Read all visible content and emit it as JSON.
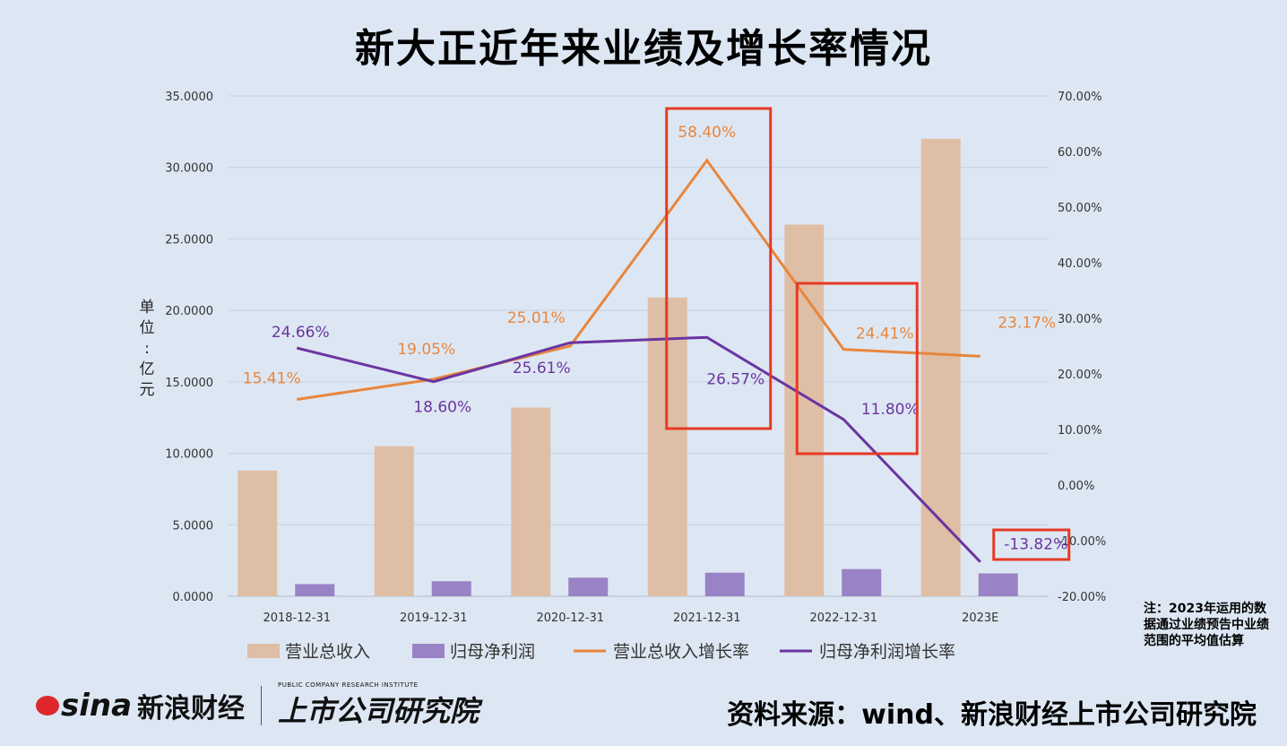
{
  "title": "新大正近年来业绩及增长率情况",
  "unit_label": [
    "单",
    "位",
    ":",
    "亿",
    "元"
  ],
  "note": "注：2023年运用的数据通过业绩预告中业绩范围的平均值估算",
  "source": "资料来源：wind、新浪财经上市公司研究院",
  "logo": {
    "sina": "sina",
    "sina_cn": "新浪财经",
    "inst_en": "PUBLIC COMPANY RESEARCH INSTITUTE",
    "inst_cn": "上市公司研究院"
  },
  "colors": {
    "revenue_bar": "#dfbea6",
    "profit_bar": "#9a82c6",
    "revenue_growth": "#e8863d",
    "profit_growth": "#6a35a0",
    "highlight": "#e53a25",
    "background": "#dde7f3"
  },
  "chart_data": {
    "type": "bar",
    "categories": [
      "2018-12-31",
      "2019-12-31",
      "2020-12-31",
      "2021-12-31",
      "2022-12-31",
      "2023E"
    ],
    "ylim": [
      0,
      35
    ],
    "y2lim": [
      -20,
      70
    ],
    "y_ticks": [
      "0.0000",
      "5.0000",
      "10.0000",
      "15.0000",
      "20.0000",
      "25.0000",
      "30.0000",
      "35.0000"
    ],
    "y2_ticks": [
      "-20.00%",
      "-10.00%",
      "0.00%",
      "10.00%",
      "20.00%",
      "30.00%",
      "40.00%",
      "50.00%",
      "60.00%",
      "70.00%"
    ],
    "series": [
      {
        "name": "营业总收入",
        "type": "bar",
        "axis": "left",
        "values": [
          8.8,
          10.5,
          13.2,
          20.9,
          26.0,
          32.0
        ]
      },
      {
        "name": "归母净利润",
        "type": "bar",
        "axis": "left",
        "values": [
          0.85,
          1.05,
          1.3,
          1.65,
          1.9,
          1.6
        ]
      },
      {
        "name": "营业总收入增长率",
        "type": "line",
        "axis": "right",
        "values": [
          15.41,
          19.05,
          25.01,
          58.4,
          24.41,
          23.17
        ],
        "labels": [
          "15.41%",
          "19.05%",
          "25.01%",
          "58.40%",
          "24.41%",
          "23.17%"
        ]
      },
      {
        "name": "归母净利润增长率",
        "type": "line",
        "axis": "right",
        "values": [
          24.66,
          18.6,
          25.61,
          26.57,
          11.8,
          -13.82
        ],
        "labels": [
          "24.66%",
          "18.60%",
          "25.61%",
          "26.57%",
          "11.80%",
          "-13.82%"
        ]
      }
    ],
    "legend_position": "bottom"
  }
}
